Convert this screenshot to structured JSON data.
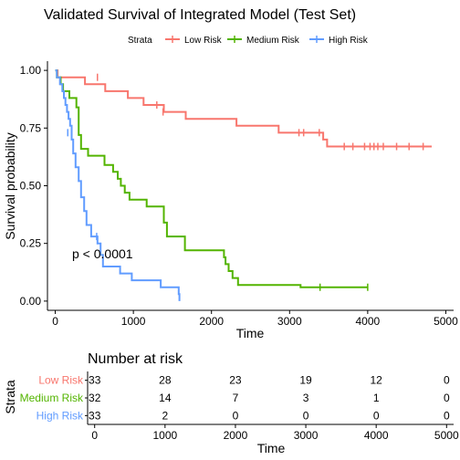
{
  "chart_data": [
    {
      "type": "line",
      "title": "Validated Survival of Integrated Model (Test Set)",
      "xlabel": "Time",
      "ylabel": "Survival probability",
      "xlim": [
        -100,
        5100
      ],
      "ylim": [
        -0.04,
        1.04
      ],
      "x_ticks": [
        0,
        1000,
        2000,
        3000,
        4000,
        5000
      ],
      "y_ticks": [
        0.0,
        0.25,
        0.5,
        0.75,
        1.0
      ],
      "y_tick_labels": [
        "0.00",
        "0.25",
        "0.50",
        "0.75",
        "1.00"
      ],
      "legend": {
        "title": "Strata",
        "placement": "top",
        "items": [
          "Low Risk",
          "Medium Risk",
          "High Risk"
        ]
      },
      "annotation": "p < 0.0001",
      "annotation_position_data": [
        60,
        0.18
      ],
      "grid": false,
      "series": [
        {
          "name": "Low Risk",
          "color": "#F8766D",
          "steps": [
            [
              0,
              1.0
            ],
            [
              30,
              0.97
            ],
            [
              380,
              0.94
            ],
            [
              640,
              0.91
            ],
            [
              930,
              0.88
            ],
            [
              1130,
              0.85
            ],
            [
              1390,
              0.82
            ],
            [
              1670,
              0.79
            ],
            [
              2320,
              0.76
            ],
            [
              2860,
              0.73
            ],
            [
              3430,
              0.7
            ],
            [
              3480,
              0.67
            ],
            [
              4820,
              0.67
            ]
          ],
          "censored": [
            [
              540,
              0.97
            ],
            [
              1300,
              0.85
            ],
            [
              1380,
              0.82
            ],
            [
              3120,
              0.73
            ],
            [
              3180,
              0.73
            ],
            [
              3380,
              0.73
            ],
            [
              3700,
              0.67
            ],
            [
              3810,
              0.67
            ],
            [
              3960,
              0.67
            ],
            [
              4030,
              0.67
            ],
            [
              4080,
              0.67
            ],
            [
              4130,
              0.67
            ],
            [
              4200,
              0.67
            ],
            [
              4370,
              0.67
            ],
            [
              4530,
              0.67
            ],
            [
              4710,
              0.67
            ]
          ]
        },
        {
          "name": "Medium Risk",
          "color": "#53B400",
          "steps": [
            [
              0,
              1.0
            ],
            [
              20,
              0.97
            ],
            [
              70,
              0.94
            ],
            [
              100,
              0.91
            ],
            [
              180,
              0.88
            ],
            [
              270,
              0.84
            ],
            [
              300,
              0.72
            ],
            [
              330,
              0.66
            ],
            [
              420,
              0.63
            ],
            [
              630,
              0.59
            ],
            [
              740,
              0.56
            ],
            [
              800,
              0.53
            ],
            [
              840,
              0.5
            ],
            [
              890,
              0.47
            ],
            [
              950,
              0.44
            ],
            [
              1170,
              0.41
            ],
            [
              1390,
              0.34
            ],
            [
              1430,
              0.28
            ],
            [
              1660,
              0.22
            ],
            [
              2130,
              0.22
            ],
            [
              2160,
              0.19
            ],
            [
              2180,
              0.16
            ],
            [
              2220,
              0.13
            ],
            [
              2270,
              0.1
            ],
            [
              2340,
              0.07
            ],
            [
              2370,
              0.07
            ],
            [
              3140,
              0.06
            ],
            [
              4000,
              0.06
            ]
          ],
          "censored": [
            [
              3390,
              0.06
            ],
            [
              4000,
              0.06
            ]
          ]
        },
        {
          "name": "High Risk",
          "color": "#619CFF",
          "steps": [
            [
              0,
              1.0
            ],
            [
              20,
              0.97
            ],
            [
              60,
              0.94
            ],
            [
              90,
              0.91
            ],
            [
              110,
              0.88
            ],
            [
              130,
              0.85
            ],
            [
              150,
              0.82
            ],
            [
              170,
              0.79
            ],
            [
              190,
              0.76
            ],
            [
              210,
              0.7
            ],
            [
              230,
              0.64
            ],
            [
              260,
              0.58
            ],
            [
              300,
              0.52
            ],
            [
              330,
              0.45
            ],
            [
              370,
              0.39
            ],
            [
              400,
              0.33
            ],
            [
              460,
              0.28
            ],
            [
              540,
              0.25
            ],
            [
              580,
              0.2
            ],
            [
              610,
              0.15
            ],
            [
              830,
              0.12
            ],
            [
              980,
              0.09
            ],
            [
              1350,
              0.06
            ],
            [
              1580,
              0.03
            ],
            [
              1590,
              0.0
            ]
          ],
          "censored": [
            [
              160,
              0.73
            ],
            [
              530,
              0.28
            ]
          ]
        }
      ]
    },
    {
      "type": "table",
      "title": "Number at risk",
      "ylabel": "Strata",
      "xlabel": "Time",
      "x_ticks": [
        0,
        1000,
        2000,
        3000,
        4000,
        5000
      ],
      "rows": [
        {
          "name": "Low Risk",
          "color": "#F8766D",
          "values": [
            33,
            28,
            23,
            19,
            12,
            0
          ]
        },
        {
          "name": "Medium Risk",
          "color": "#53B400",
          "values": [
            32,
            14,
            7,
            3,
            1,
            0
          ]
        },
        {
          "name": "High Risk",
          "color": "#619CFF",
          "values": [
            33,
            2,
            0,
            0,
            0,
            0
          ]
        }
      ]
    }
  ]
}
